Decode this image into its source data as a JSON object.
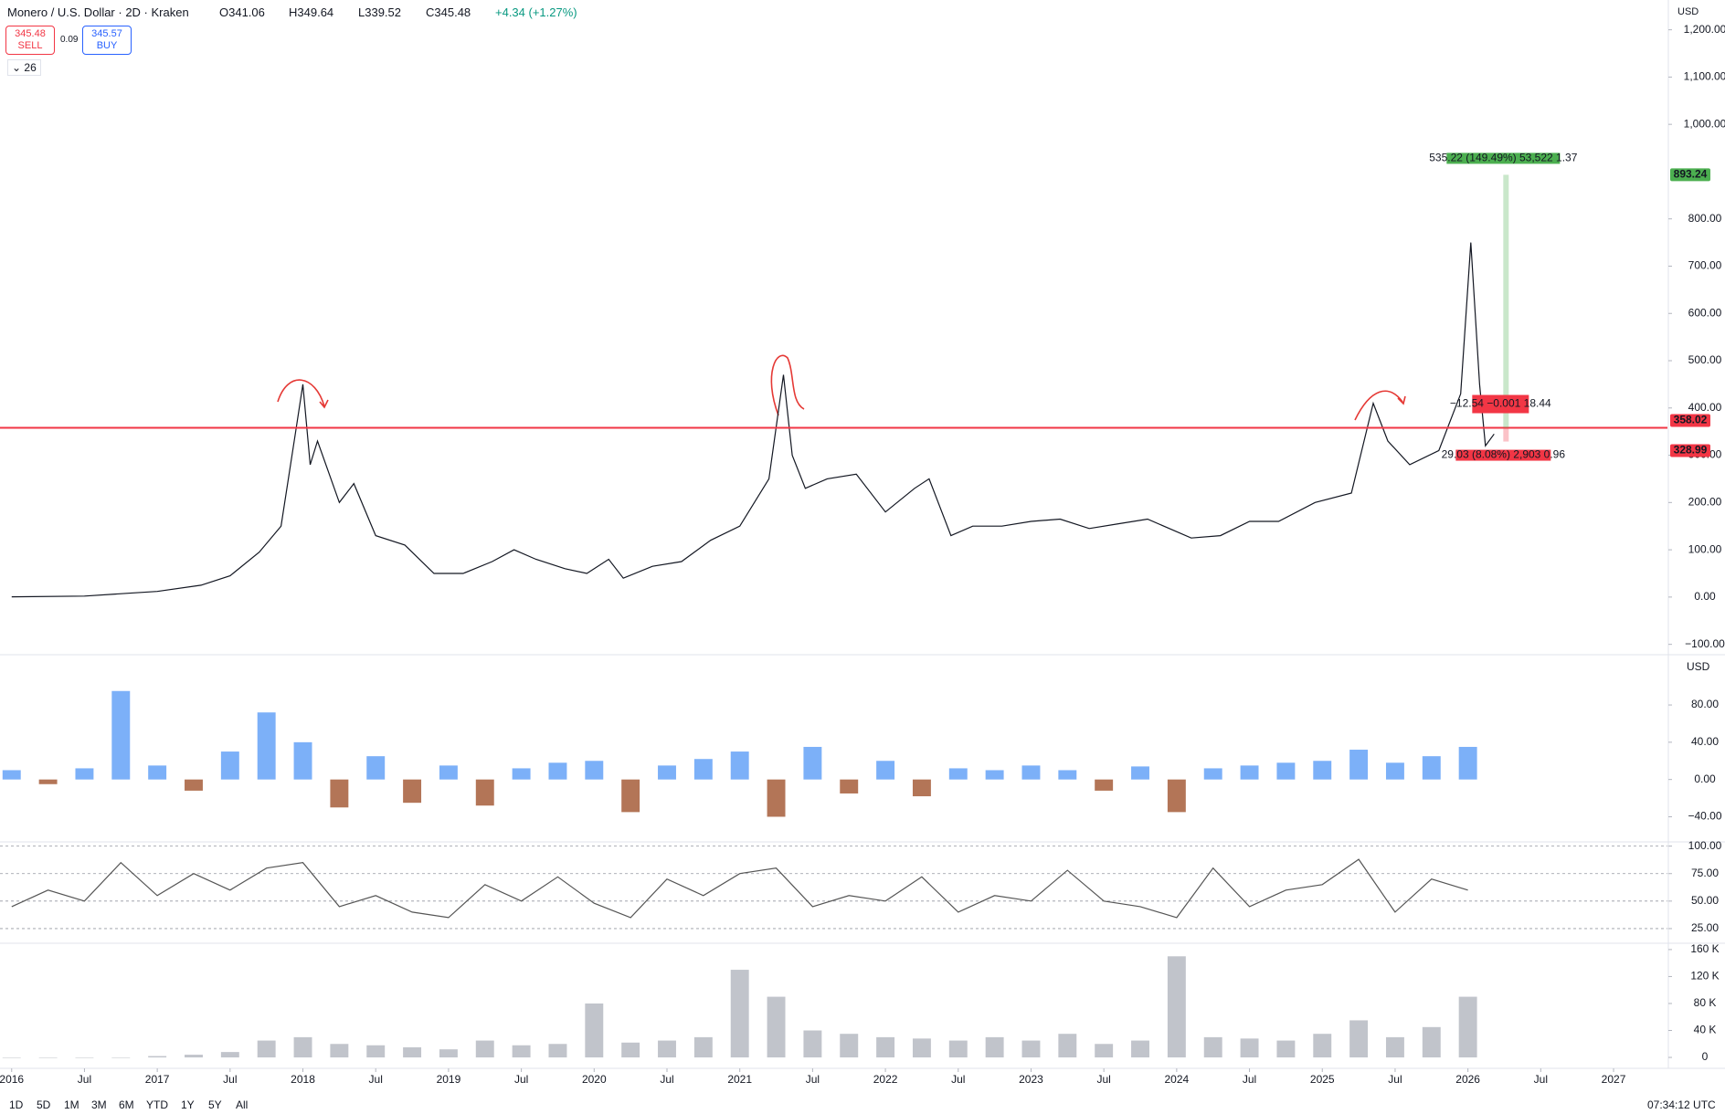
{
  "header": {
    "symbol": "Monero / U.S. Dollar · 2D · Kraken",
    "open": "O341.06",
    "high": "H349.64",
    "low": "L339.52",
    "close": "C345.48",
    "change": "+4.34 (+1.27%)",
    "sell_price": "345.48",
    "sell": "SELL",
    "spread": "0.09",
    "buy_price": "345.57",
    "buy": "BUY",
    "indicators": "26",
    "currency": "USD"
  },
  "toolbar": {
    "ranges": [
      "1D",
      "5D",
      "1M",
      "3M",
      "6M",
      "YTD",
      "1Y",
      "5Y",
      "All"
    ],
    "time": "07:34:12 UTC"
  },
  "chart_data": [
    {
      "type": "line",
      "color": "#131722",
      "x": [
        2016.0,
        2016.5,
        2016.8,
        2017.0,
        2017.3,
        2017.5,
        2017.7,
        2017.85,
        2017.95,
        2018.0,
        2018.05,
        2018.1,
        2018.25,
        2018.35,
        2018.5,
        2018.7,
        2018.9,
        2019.1,
        2019.3,
        2019.45,
        2019.6,
        2019.8,
        2019.95,
        2020.1,
        2020.2,
        2020.4,
        2020.6,
        2020.8,
        2021.0,
        2021.2,
        2021.3,
        2021.36,
        2021.45,
        2021.6,
        2021.8,
        2022.0,
        2022.2,
        2022.3,
        2022.45,
        2022.6,
        2022.8,
        2023.0,
        2023.2,
        2023.4,
        2023.6,
        2023.8,
        2024.1,
        2024.3,
        2024.5,
        2024.7,
        2024.95,
        2025.2,
        2025.35,
        2025.45,
        2025.6,
        2025.8,
        2025.95,
        2026.02,
        2026.08,
        2026.12,
        2026.18
      ],
      "values": [
        0.5,
        2,
        8,
        12,
        25,
        45,
        95,
        150,
        350,
        450,
        280,
        330,
        200,
        240,
        130,
        110,
        50,
        50,
        75,
        100,
        80,
        60,
        50,
        80,
        40,
        65,
        75,
        120,
        150,
        250,
        470,
        300,
        230,
        250,
        260,
        180,
        230,
        250,
        130,
        150,
        150,
        160,
        165,
        145,
        155,
        165,
        125,
        130,
        160,
        160,
        200,
        220,
        410,
        330,
        280,
        310,
        430,
        750,
        450,
        320,
        345
      ],
      "xlim": [
        2015.92,
        2027.37
      ],
      "xticks": [
        2016,
        {
          "value": 2016.5,
          "label": "Jul"
        },
        2017,
        {
          "value": 2017.5,
          "label": "Jul"
        },
        2018,
        {
          "value": 2018.5,
          "label": "Jul"
        },
        2019,
        {
          "value": 2019.5,
          "label": "Jul"
        },
        2020,
        {
          "value": 2020.5,
          "label": "Jul"
        },
        2021,
        {
          "value": 2021.5,
          "label": "Jul"
        },
        2022,
        {
          "value": 2022.5,
          "label": "Jul"
        },
        2023,
        {
          "value": 2023.5,
          "label": "Jul"
        },
        2024,
        {
          "value": 2024.5,
          "label": "Jul"
        },
        2025,
        {
          "value": 2025.5,
          "label": "Jul"
        },
        2026,
        {
          "value": 2026.5,
          "label": "Jul"
        },
        2027
      ],
      "ylim": [
        -120,
        1263
      ],
      "yticks": [
        {
          "value": -100,
          "label": "−100.00"
        },
        {
          "value": 0,
          "label": "0.00"
        },
        {
          "value": 100,
          "label": "100.00"
        },
        {
          "value": 200,
          "label": "200.00"
        },
        {
          "value": 300,
          "label": "300.00"
        },
        {
          "value": 400,
          "label": "400.00"
        },
        {
          "value": 500,
          "label": "500.00"
        },
        {
          "value": 600,
          "label": "600.00"
        },
        {
          "value": 700,
          "label": "700.00"
        },
        {
          "value": 800,
          "label": "800.00"
        },
        {
          "value": 1000,
          "label": "1,000.00"
        },
        {
          "value": 1100,
          "label": "1,100.00"
        },
        {
          "value": 1200,
          "label": "1,200.00"
        }
      ],
      "grid": false,
      "hline": 358.02,
      "hline_color": "#f23645",
      "target": 893.24,
      "target_color": "#4caf50",
      "target_text": "535.22 (149.49%) 53,522 1.37",
      "stop": 328.99,
      "stop_color": "#f23645",
      "stop_text": "29.03 (8.08%) 2,903 0.96",
      "cursor_text": "−12.54 −0.001 18.44"
    },
    {
      "type": "bar",
      "unit": "USD",
      "color": "#5b9cf6",
      "negative_color": "#a0522d",
      "x": [
        2016,
        2016.25,
        2016.5,
        2016.75,
        2017,
        2017.25,
        2017.5,
        2017.75,
        2018,
        2018.25,
        2018.5,
        2018.75,
        2019,
        2019.25,
        2019.5,
        2019.75,
        2020,
        2020.25,
        2020.5,
        2020.75,
        2021,
        2021.25,
        2021.5,
        2021.75,
        2022,
        2022.25,
        2022.5,
        2022.75,
        2023,
        2023.25,
        2023.5,
        2023.75,
        2024,
        2024.25,
        2024.5,
        2024.75,
        2025,
        2025.25,
        2025.5,
        2025.75,
        2026
      ],
      "values": [
        10,
        -5,
        12,
        95,
        15,
        -12,
        30,
        72,
        40,
        -30,
        25,
        -25,
        15,
        -28,
        12,
        18,
        20,
        -35,
        15,
        22,
        30,
        -40,
        35,
        -15,
        20,
        -18,
        12,
        10,
        15,
        10,
        -12,
        14,
        -35,
        12,
        15,
        18,
        20,
        32,
        18,
        25,
        35
      ],
      "ylim": [
        -66,
        132
      ],
      "yticks": [
        {
          "value": -40,
          "label": "−40.00"
        },
        {
          "value": 0,
          "label": "0.00"
        },
        {
          "value": 40,
          "label": "40.00"
        },
        {
          "value": 80,
          "label": "80.00"
        }
      ],
      "grid": false
    },
    {
      "type": "line",
      "color": "#555555",
      "x": [
        2016,
        2016.25,
        2016.5,
        2016.75,
        2017,
        2017.25,
        2017.5,
        2017.75,
        2018,
        2018.25,
        2018.5,
        2018.75,
        2019,
        2019.25,
        2019.5,
        2019.75,
        2020,
        2020.25,
        2020.5,
        2020.75,
        2021,
        2021.25,
        2021.5,
        2021.75,
        2022,
        2022.25,
        2022.5,
        2022.75,
        2023,
        2023.25,
        2023.5,
        2023.75,
        2024,
        2024.25,
        2024.5,
        2024.75,
        2025,
        2025.25,
        2025.5,
        2025.75,
        2026
      ],
      "values": [
        45,
        60,
        50,
        85,
        55,
        75,
        60,
        80,
        85,
        45,
        55,
        40,
        35,
        65,
        50,
        72,
        48,
        35,
        70,
        55,
        75,
        80,
        45,
        55,
        50,
        72,
        40,
        55,
        50,
        78,
        50,
        45,
        35,
        80,
        45,
        60,
        65,
        88,
        40,
        70,
        60
      ],
      "ylim": [
        12.5,
        103
      ],
      "yticks": [
        {
          "value": 25,
          "label": "25.00"
        },
        {
          "value": 50,
          "label": "50.00"
        },
        {
          "value": 75,
          "label": "75.00"
        },
        {
          "value": 100,
          "label": "100.00"
        }
      ],
      "grid": true
    },
    {
      "type": "bar",
      "color": "#b2b5be",
      "x": [
        2016,
        2016.25,
        2016.5,
        2016.75,
        2017,
        2017.25,
        2017.5,
        2017.75,
        2018,
        2018.25,
        2018.5,
        2018.75,
        2019,
        2019.25,
        2019.5,
        2019.75,
        2020,
        2020.25,
        2020.5,
        2020.75,
        2021,
        2021.25,
        2021.5,
        2021.75,
        2022,
        2022.25,
        2022.5,
        2022.75,
        2023,
        2023.25,
        2023.5,
        2023.75,
        2024,
        2024.25,
        2024.5,
        2024.75,
        2025,
        2025.25,
        2025.5,
        2025.75,
        2026
      ],
      "values": [
        0,
        0,
        0,
        0,
        2000,
        4000,
        8000,
        25000,
        30000,
        20000,
        18000,
        15000,
        12000,
        25000,
        18000,
        20000,
        80000,
        22000,
        25000,
        30000,
        130000,
        90000,
        40000,
        35000,
        30000,
        28000,
        25000,
        30000,
        25000,
        35000,
        20000,
        25000,
        150000,
        30000,
        28000,
        25000,
        35000,
        55000,
        30000,
        45000,
        90000
      ],
      "ylim": [
        -13500,
        168000
      ],
      "yticks": [
        0,
        {
          "value": 40000,
          "label": "40 K"
        },
        {
          "value": 80000,
          "label": "80 K"
        },
        {
          "value": 120000,
          "label": "120 K"
        },
        {
          "value": 160000,
          "label": "160 K"
        }
      ],
      "grid": false
    }
  ]
}
